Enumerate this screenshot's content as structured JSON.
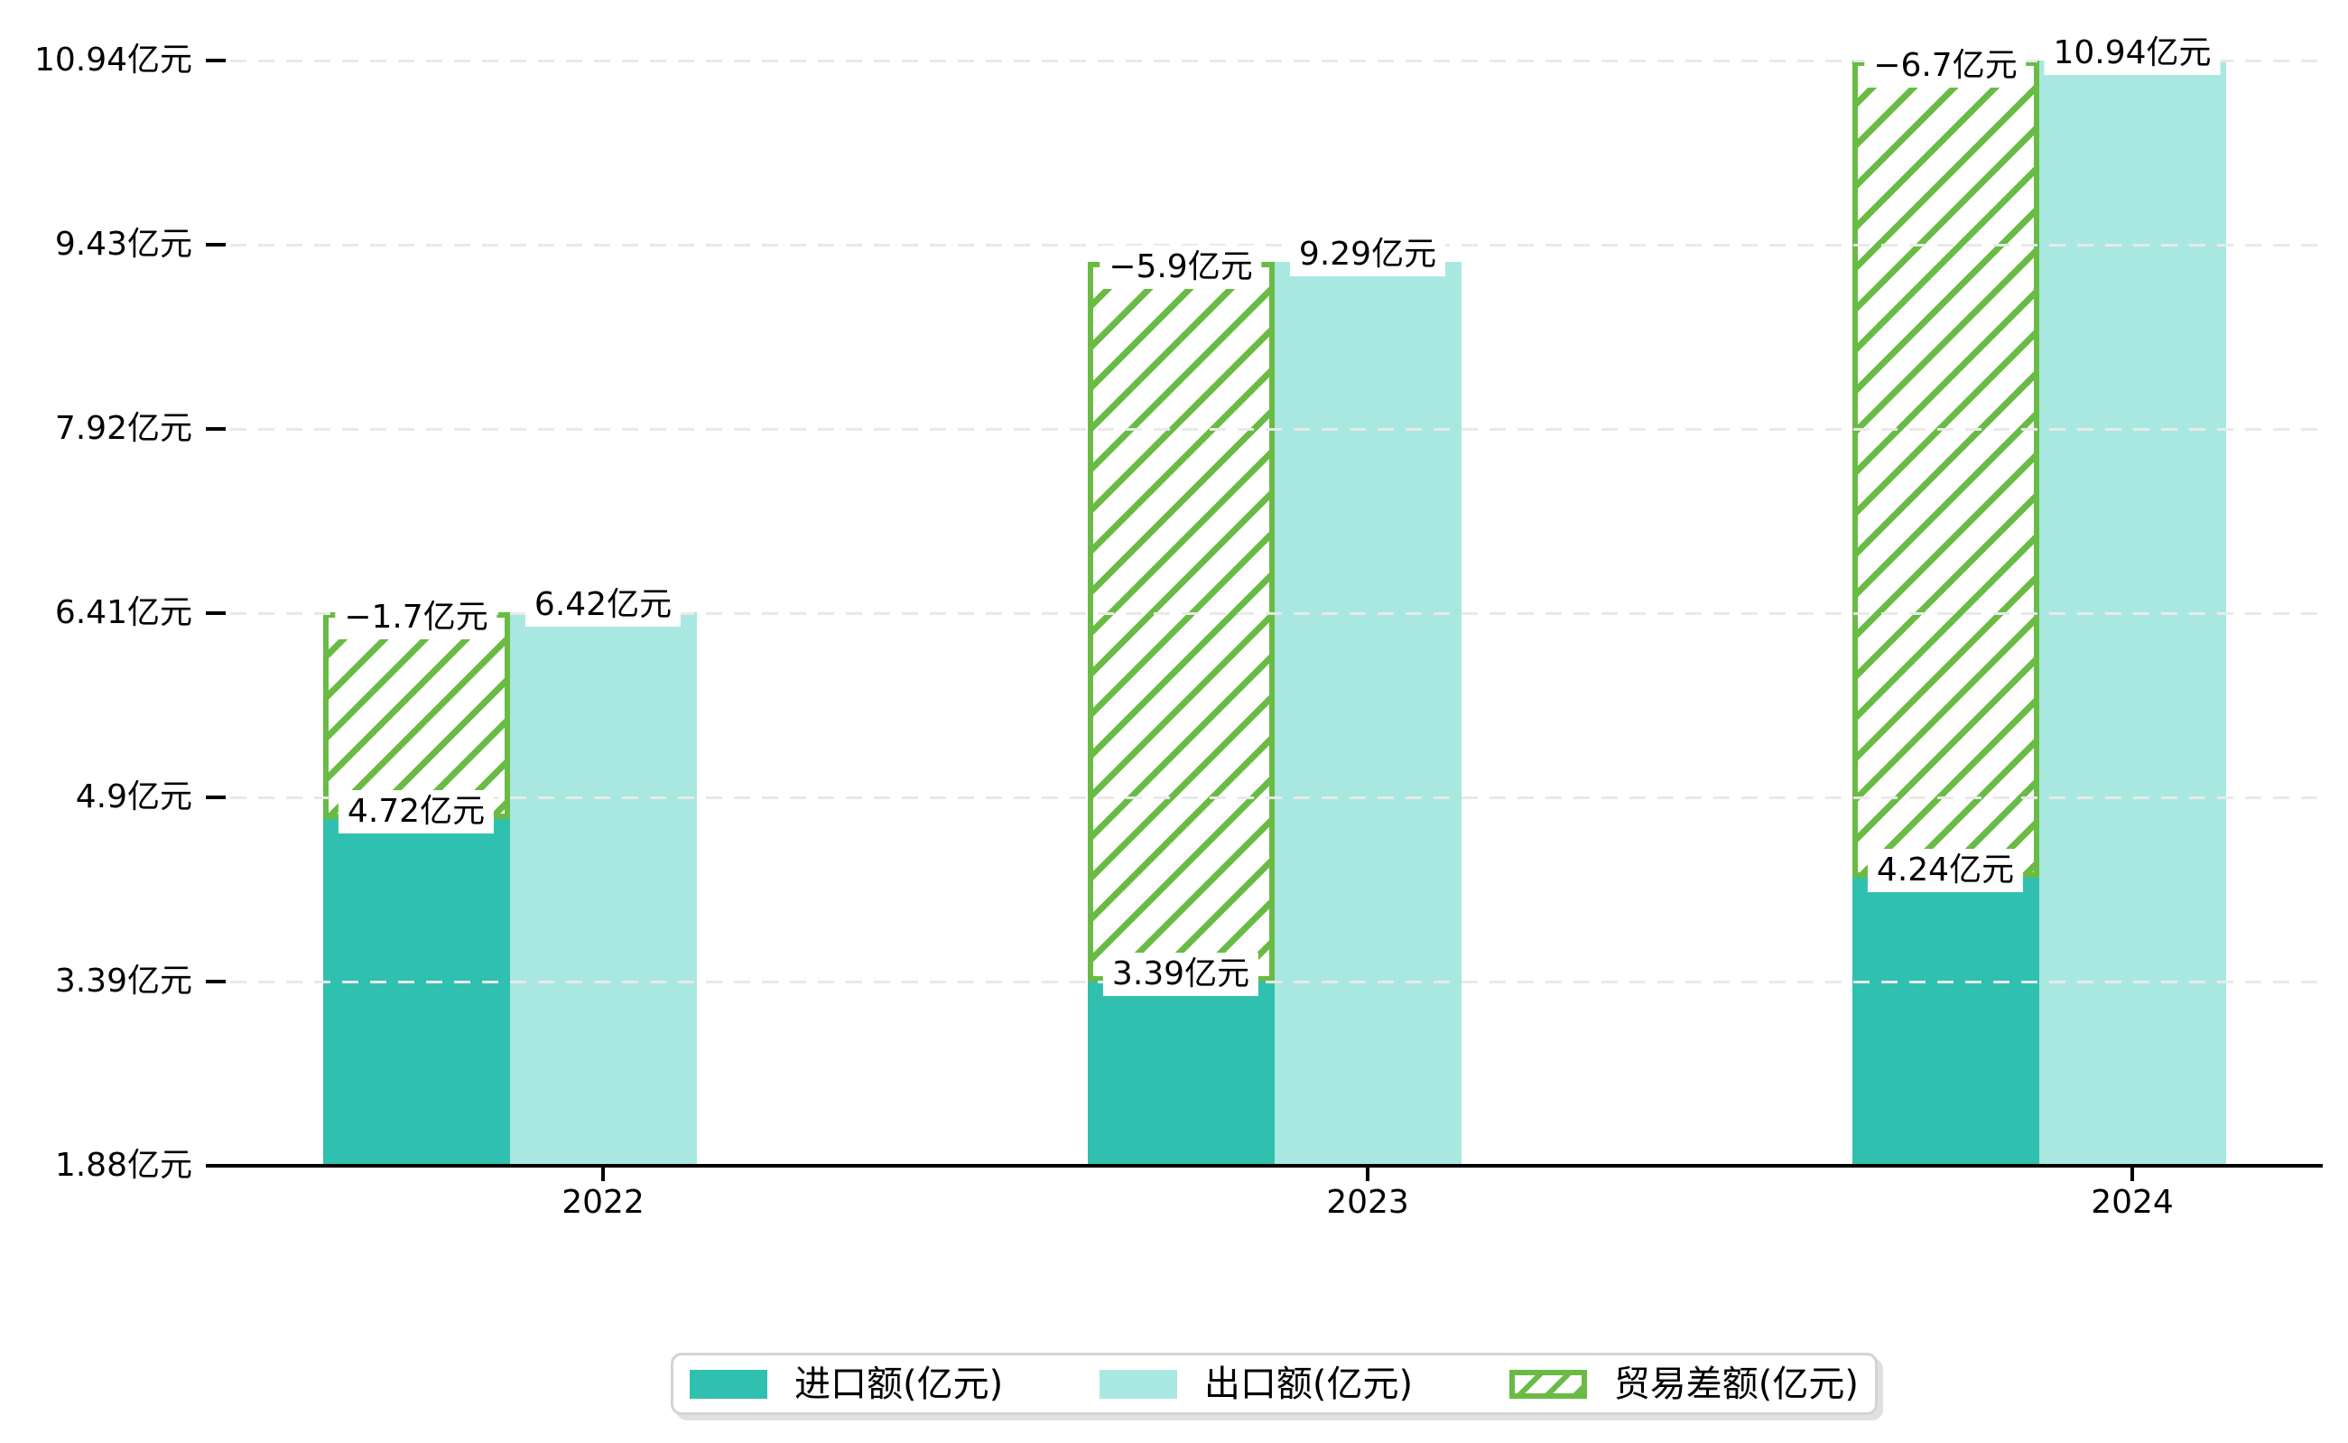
{
  "chart_data": {
    "type": "bar",
    "title": "",
    "unit": "亿元",
    "categories": [
      "2022",
      "2023",
      "2024"
    ],
    "series": [
      {
        "name": "进口额(亿元)",
        "role": "import",
        "color": "#2fc0af",
        "values": [
          4.72,
          3.39,
          4.24
        ],
        "data_labels": [
          "4.72亿元",
          "3.39亿元",
          "4.24亿元"
        ]
      },
      {
        "name": "出口额(亿元)",
        "role": "export",
        "color": "#a9e8e0",
        "values": [
          6.42,
          9.29,
          10.94
        ],
        "data_labels": [
          "6.42亿元",
          "9.29亿元",
          "10.94亿元"
        ]
      },
      {
        "name": "贸易差额(亿元)",
        "role": "trade-diff",
        "color": "#69bb44",
        "pattern": "diagonal-hatch",
        "render_note": "hatched segment stacked on top of import bar spanning up to the export value",
        "values": [
          -1.7,
          -5.9,
          -6.7
        ],
        "data_labels": [
          "−1.7亿元",
          "−5.9亿元",
          "−6.7亿元"
        ]
      }
    ],
    "y_axis": {
      "min": 1.88,
      "max": 10.94,
      "tick_values": [
        1.88,
        3.39,
        4.9,
        6.41,
        7.92,
        9.43,
        10.94
      ],
      "tick_labels": [
        "1.88亿元",
        "3.39亿元",
        "4.9亿元",
        "6.41亿元",
        "7.92亿元",
        "9.43亿元",
        "10.94亿元"
      ]
    },
    "x_axis": {
      "tick_labels": [
        "2022",
        "2023",
        "2024"
      ]
    },
    "legend": {
      "position": "bottom",
      "items": [
        "进口额(亿元)",
        "出口额(亿元)",
        "贸易差额(亿元)"
      ]
    },
    "grid": {
      "horizontal_dashed": true,
      "color": "#e9e9e9"
    },
    "colors": {
      "import": "#2fc0af",
      "export": "#a9e8e0",
      "trade_diff": "#69bb44",
      "axis": "#000000",
      "gridline": "#e9e9e9",
      "label_text": "#000000",
      "legend_border": "#d3d3d3"
    }
  }
}
